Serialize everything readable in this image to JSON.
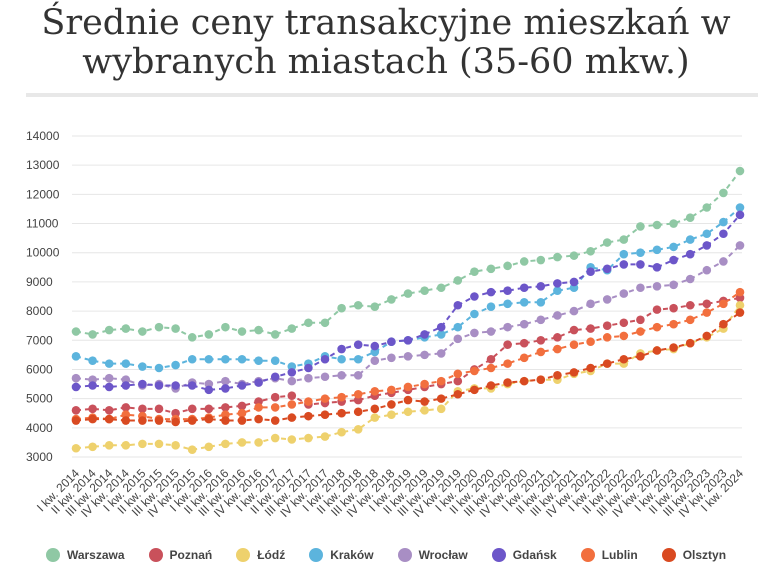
{
  "title": "Średnie ceny transakcyjne mieszkań w wybranych miastach (35-60 mkw.)",
  "chart_data": {
    "type": "line",
    "title": "Średnie ceny transakcyjne mieszkań w wybranych miastach (35-60 mkw.)",
    "xlabel": "",
    "ylabel": "",
    "ylim": [
      2700,
      14200
    ],
    "yticks": [
      3000,
      4000,
      5000,
      6000,
      7000,
      8000,
      9000,
      10000,
      11000,
      12000,
      13000,
      14000
    ],
    "ytick_labels": [
      "3000",
      "4000",
      "5000",
      "6000",
      "7000",
      "8000",
      "9000",
      "10000",
      "11000",
      "12000",
      "13000",
      "14000"
    ],
    "grid": true,
    "legend_position": "bottom",
    "categories": [
      "I kw. 2014",
      "II kw. 2014",
      "III kw. 2014",
      "IV kw. 2014",
      "I kw. 2015",
      "II kw. 2015",
      "III kw. 2015",
      "IV kw. 2015",
      "I kw. 2016",
      "II kw. 2016",
      "III kw. 2016",
      "IV kw. 2016",
      "I kw. 2017",
      "II kw. 2017",
      "III kw. 2017",
      "IV kw. 2017",
      "I kw. 2018",
      "II kw. 2018",
      "III kw. 2018",
      "IV kw. 2018",
      "I kw. 2019",
      "II kw. 2019",
      "III kw. 2019",
      "IV kw. 2019",
      "I kw. 2020",
      "II kw. 2020",
      "III kw. 2020",
      "IV kw. 2020",
      "I kw. 2021",
      "II kw. 2021",
      "III kw. 2021",
      "IV kw. 2021",
      "I kw. 2022",
      "II kw. 2022",
      "III kw. 2022",
      "IV kw. 2022",
      "I kw. 2023",
      "II kw. 2023",
      "III kw. 2023",
      "IV kw. 2023",
      "I kw. 2024"
    ],
    "series": [
      {
        "name": "Warszawa",
        "color": "#8fc8a4",
        "values": [
          7300,
          7200,
          7350,
          7400,
          7300,
          7450,
          7400,
          7100,
          7200,
          7450,
          7300,
          7350,
          7200,
          7400,
          7600,
          7600,
          8100,
          8200,
          8150,
          8400,
          8600,
          8700,
          8800,
          9050,
          9350,
          9450,
          9550,
          9700,
          9750,
          9850,
          9900,
          10050,
          10350,
          10450,
          10900,
          10950,
          11000,
          11200,
          11550,
          12050,
          12800
        ]
      },
      {
        "name": "Poznań",
        "color": "#c9515b",
        "values": [
          4600,
          4650,
          4600,
          4700,
          4650,
          4650,
          4500,
          4650,
          4650,
          4700,
          4750,
          4900,
          5050,
          5100,
          4800,
          4850,
          4900,
          4950,
          5100,
          5200,
          5300,
          5400,
          5500,
          5600,
          6000,
          6350,
          6850,
          6900,
          7000,
          7100,
          7350,
          7400,
          7500,
          7600,
          7700,
          8050,
          8100,
          8200,
          8250,
          8350,
          8450
        ]
      },
      {
        "name": "Łódź",
        "color": "#eed16d",
        "values": [
          3300,
          3350,
          3400,
          3400,
          3450,
          3450,
          3400,
          3250,
          3350,
          3450,
          3500,
          3500,
          3650,
          3600,
          3650,
          3700,
          3850,
          3950,
          4350,
          4450,
          4550,
          4600,
          4650,
          5250,
          5350,
          5350,
          5500,
          5600,
          5650,
          5650,
          5850,
          5950,
          6200,
          6200,
          6550,
          6650,
          6700,
          6900,
          7100,
          7400,
          8200
        ]
      },
      {
        "name": "Kraków",
        "color": "#5cb4dd",
        "values": [
          6450,
          6300,
          6200,
          6200,
          6100,
          6050,
          6150,
          6350,
          6350,
          6350,
          6350,
          6300,
          6300,
          6100,
          6200,
          6450,
          6350,
          6350,
          6600,
          6950,
          7000,
          7100,
          7200,
          7450,
          7900,
          8150,
          8250,
          8300,
          8300,
          8700,
          8800,
          9500,
          9400,
          9950,
          10000,
          10100,
          10200,
          10450,
          10650,
          11050,
          11550
        ]
      },
      {
        "name": "Wrocław",
        "color": "#a88ec4",
        "values": [
          5700,
          5650,
          5700,
          5650,
          5450,
          5500,
          5350,
          5550,
          5500,
          5600,
          5500,
          5600,
          5700,
          5600,
          5700,
          5750,
          5800,
          5800,
          6300,
          6400,
          6450,
          6500,
          6550,
          7050,
          7250,
          7300,
          7450,
          7550,
          7700,
          7850,
          8000,
          8250,
          8400,
          8600,
          8800,
          8850,
          8900,
          9100,
          9400,
          9700,
          10250
        ]
      },
      {
        "name": "Gdańsk",
        "color": "#6c56c9",
        "values": [
          5400,
          5450,
          5400,
          5450,
          5500,
          5450,
          5450,
          5450,
          5300,
          5350,
          5450,
          5550,
          5750,
          5900,
          6050,
          6350,
          6700,
          6850,
          6800,
          6950,
          7000,
          7200,
          7450,
          8200,
          8500,
          8650,
          8700,
          8800,
          8850,
          8950,
          9000,
          9350,
          9450,
          9600,
          9600,
          9500,
          9750,
          9950,
          10250,
          10650,
          11300
        ]
      },
      {
        "name": "Lublin",
        "color": "#f26f3e",
        "values": [
          4300,
          4350,
          4300,
          4450,
          4400,
          4300,
          4300,
          4300,
          4350,
          4450,
          4500,
          4700,
          4700,
          4800,
          4900,
          5000,
          5050,
          5150,
          5250,
          5300,
          5400,
          5500,
          5600,
          5850,
          5950,
          6050,
          6200,
          6400,
          6600,
          6700,
          6850,
          6950,
          7100,
          7150,
          7300,
          7450,
          7550,
          7700,
          7950,
          8250,
          8650
        ]
      },
      {
        "name": "Olsztyn",
        "color": "#d94a21",
        "values": [
          4250,
          4300,
          4300,
          4250,
          4250,
          4250,
          4200,
          4250,
          4300,
          4250,
          4250,
          4300,
          4250,
          4350,
          4400,
          4450,
          4500,
          4550,
          4650,
          4800,
          4950,
          4900,
          5000,
          5150,
          5300,
          5450,
          5550,
          5600,
          5650,
          5800,
          5900,
          6050,
          6200,
          6350,
          6450,
          6650,
          6750,
          6900,
          7150,
          7550,
          7950
        ]
      }
    ]
  }
}
